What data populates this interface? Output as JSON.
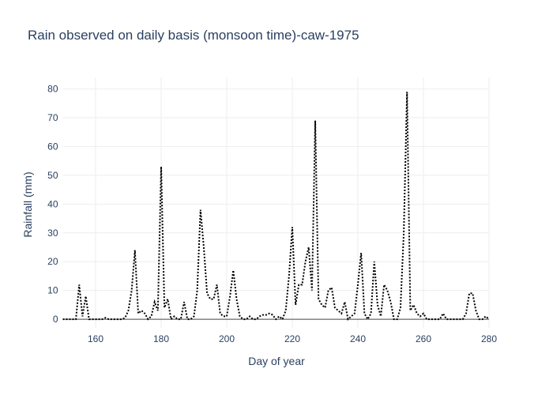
{
  "chart_data": {
    "type": "line",
    "title": "Rain observed on daily basis (monsoon time)-caw-1975",
    "x_label": "Day of year",
    "y_label": "Rainfall (mm)",
    "x": [
      150,
      151,
      152,
      153,
      154,
      155,
      156,
      157,
      158,
      159,
      160,
      161,
      162,
      163,
      164,
      165,
      166,
      167,
      168,
      169,
      170,
      171,
      172,
      173,
      174,
      175,
      176,
      177,
      178,
      179,
      180,
      181,
      182,
      183,
      184,
      185,
      186,
      187,
      188,
      189,
      190,
      191,
      192,
      193,
      194,
      195,
      196,
      197,
      198,
      199,
      200,
      201,
      202,
      203,
      204,
      205,
      206,
      207,
      208,
      209,
      210,
      211,
      212,
      213,
      214,
      215,
      216,
      217,
      218,
      219,
      220,
      221,
      222,
      223,
      224,
      225,
      226,
      227,
      228,
      229,
      230,
      231,
      232,
      233,
      234,
      235,
      236,
      237,
      238,
      239,
      240,
      241,
      242,
      243,
      244,
      245,
      246,
      247,
      248,
      249,
      250,
      251,
      252,
      253,
      254,
      255,
      256,
      257,
      258,
      259,
      260,
      261,
      262,
      263,
      264,
      265,
      266,
      267,
      268,
      269,
      270,
      271,
      272,
      273,
      274,
      275,
      276,
      277,
      278,
      279,
      280
    ],
    "series": [
      {
        "name": "Rainfall",
        "color": "#000000",
        "values": [
          0,
          0,
          0,
          0,
          0,
          12,
          1,
          8,
          0,
          0,
          0,
          0,
          0,
          0.5,
          0,
          0,
          0,
          0,
          0,
          0.5,
          3,
          10,
          24,
          2,
          3,
          2,
          0,
          1,
          6,
          3,
          53,
          4,
          7,
          0,
          1,
          0,
          0,
          6,
          0,
          0,
          1,
          10,
          38,
          25,
          9,
          7,
          7,
          12,
          2,
          1,
          1,
          8,
          17,
          7,
          1,
          0,
          0,
          1,
          0,
          0,
          1,
          1.5,
          1.5,
          2,
          1.5,
          0,
          1,
          0,
          3,
          15,
          32,
          5,
          12,
          12,
          20,
          25,
          10,
          69,
          7,
          5,
          4,
          10,
          11,
          4,
          3,
          2,
          6,
          0,
          1,
          2,
          12,
          23,
          2,
          0,
          2,
          20,
          5,
          1,
          12,
          10,
          6,
          0,
          0,
          4,
          30,
          79,
          3,
          5,
          2,
          1,
          2,
          0,
          0,
          0,
          0,
          0,
          2,
          0,
          0,
          0,
          0,
          0,
          0,
          2,
          9,
          9,
          3,
          0,
          0,
          1,
          0
        ]
      }
    ],
    "xlim": [
      150,
      280
    ],
    "ylim": [
      -3,
      84
    ],
    "xticks": [
      160,
      180,
      200,
      220,
      240,
      260,
      280
    ],
    "yticks": [
      0,
      10,
      20,
      30,
      40,
      50,
      60,
      70,
      80
    ],
    "grid": true
  }
}
